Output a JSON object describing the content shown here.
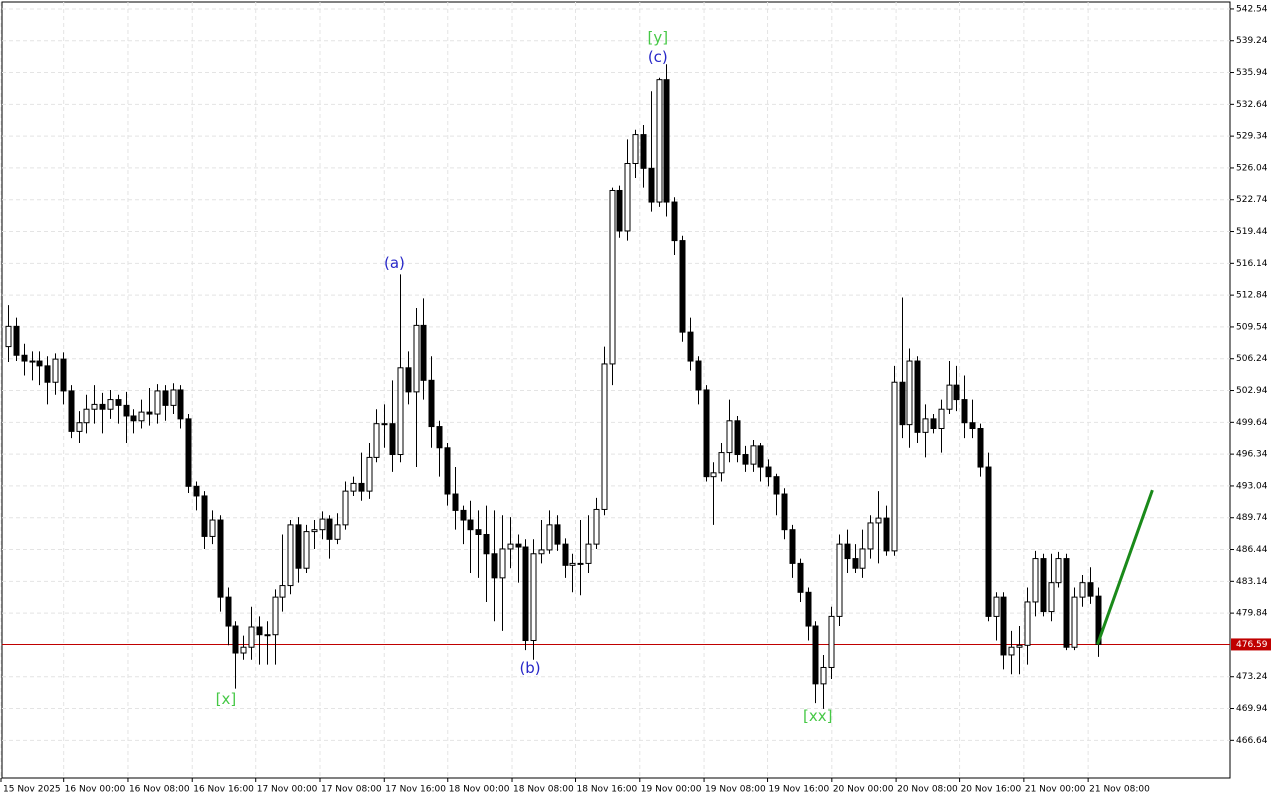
{
  "chart_data": {
    "type": "candlestick",
    "xlim": [
      -0.77,
      155.9
    ],
    "ylim": [
      462.73,
      543.26
    ],
    "grid": true,
    "up_color": "#ffffff",
    "down_color": "#000000",
    "xticks": [
      {
        "value": -0.9,
        "label": "15 Nov 2025"
      },
      {
        "value": 7.1,
        "label": "16 Nov 00:00"
      },
      {
        "value": 15.3,
        "label": "16 Nov 08:00"
      },
      {
        "value": 23.5,
        "label": "16 Nov 16:00"
      },
      {
        "value": 31.6,
        "label": "17 Nov 00:00"
      },
      {
        "value": 39.8,
        "label": "17 Nov 08:00"
      },
      {
        "value": 48.0,
        "label": "17 Nov 16:00"
      },
      {
        "value": 56.1,
        "label": "18 Nov 00:00"
      },
      {
        "value": 64.3,
        "label": "18 Nov 08:00"
      },
      {
        "value": 72.4,
        "label": "18 Nov 16:00"
      },
      {
        "value": 80.6,
        "label": "19 Nov 00:00"
      },
      {
        "value": 88.8,
        "label": "19 Nov 08:00"
      },
      {
        "value": 96.9,
        "label": "19 Nov 16:00"
      },
      {
        "value": 105.1,
        "label": "20 Nov 00:00"
      },
      {
        "value": 113.3,
        "label": "20 Nov 08:00"
      },
      {
        "value": 121.4,
        "label": "20 Nov 16:00"
      },
      {
        "value": 129.6,
        "label": "21 Nov 00:00"
      },
      {
        "value": 137.8,
        "label": "21 Nov 08:00"
      }
    ],
    "yticks": [
      542.54,
      539.24,
      535.94,
      532.64,
      529.34,
      526.04,
      522.74,
      519.44,
      516.14,
      512.84,
      509.54,
      506.24,
      502.94,
      499.64,
      496.34,
      493.04,
      489.74,
      486.44,
      483.14,
      479.84,
      473.24,
      469.94,
      466.64
    ],
    "open": [
      507.5,
      509.6,
      506.6,
      506.0,
      506.0,
      505.5,
      503.8,
      506.2,
      502.9,
      498.7,
      499.6,
      501.0,
      501.5,
      501.0,
      502.0,
      501.4,
      500.3,
      499.8,
      500.7,
      500.5,
      502.9,
      501.4,
      503.0,
      500.0,
      493.0,
      492.0,
      487.8,
      489.5,
      481.5,
      478.5,
      475.7,
      476.3,
      478.4,
      477.6,
      477.6,
      481.5,
      482.7,
      489.0,
      484.5,
      488.3,
      488.5,
      489.6,
      487.5,
      489.0,
      492.5,
      493.3,
      492.5,
      496.0,
      499.5,
      499.5,
      496.3,
      505.3,
      502.8,
      509.7,
      504.0,
      499.2,
      497.0,
      492.2,
      490.5,
      489.5,
      488.5,
      488.0,
      486.0,
      483.5,
      486.5,
      487.0,
      486.7,
      477.0,
      486.0,
      486.4,
      489.0,
      487.0,
      484.8,
      485.0,
      485.0,
      487.0,
      490.6,
      505.7,
      523.7,
      519.5,
      526.5,
      529.5,
      526.0,
      522.5,
      535.2,
      522.5,
      518.5,
      509.0,
      506.0,
      503.0,
      494.0,
      494.4,
      496.5,
      499.8,
      496.3,
      495.3,
      497.2,
      495.0,
      494.0,
      492.2,
      488.5,
      485.0,
      482.0,
      478.5,
      472.5,
      474.2,
      479.5,
      487.0,
      485.5,
      484.5,
      486.5,
      489.2,
      489.7,
      486.3,
      503.8,
      499.4,
      506.0,
      498.6,
      500.0,
      499.0,
      501.0,
      503.5,
      502.0,
      499.6,
      499.0,
      495.0,
      479.5,
      481.5,
      475.5,
      476.3,
      476.5,
      481.0,
      485.5,
      480.0,
      483.0,
      485.5,
      476.3,
      481.5,
      483.0,
      481.6
    ],
    "high": [
      511.8,
      510.5,
      507.8,
      507.0,
      507.0,
      506.5,
      506.8,
      506.9,
      503.5,
      500.8,
      502.5,
      503.5,
      502.7,
      503.0,
      502.5,
      502.8,
      501.0,
      502.0,
      503.2,
      503.6,
      503.5,
      503.7,
      503.5,
      500.5,
      493.5,
      492.5,
      490.5,
      490.0,
      482.5,
      479.0,
      477.5,
      480.5,
      479.5,
      479.0,
      482.3,
      488.0,
      489.5,
      489.8,
      489.0,
      489.5,
      490.4,
      490.0,
      490.2,
      493.5,
      494.0,
      496.5,
      497.5,
      501.0,
      501.5,
      504.0,
      515.0,
      507.0,
      511.5,
      512.5,
      506.5,
      499.8,
      497.5,
      495.0,
      491.0,
      491.5,
      490.5,
      491.0,
      490.5,
      490.0,
      489.8,
      488.0,
      487.5,
      487.5,
      489.5,
      490.5,
      490.0,
      487.6,
      486.0,
      489.5,
      490.0,
      491.8,
      507.5,
      524.0,
      524.2,
      529.0,
      530.0,
      530.5,
      534.0,
      535.4,
      536.8,
      523.0,
      519.0,
      510.5,
      506.5,
      503.5,
      495.5,
      497.5,
      502.0,
      500.3,
      497.2,
      497.8,
      497.5,
      495.8,
      494.3,
      492.8,
      489.0,
      485.5,
      482.5,
      479.0,
      475.5,
      480.5,
      488.0,
      488.5,
      487.0,
      488.5,
      490.0,
      492.5,
      491.0,
      505.5,
      512.6,
      507.3,
      506.5,
      501.5,
      500.5,
      502.0,
      506.0,
      505.5,
      504.5,
      502.0,
      499.5,
      496.5,
      482.0,
      482.0,
      478.0,
      478.5,
      482.5,
      486.3,
      486.0,
      486.0,
      486.2,
      486.0,
      482.5,
      483.8,
      484.6,
      482.5
    ],
    "low": [
      505.9,
      506.0,
      504.5,
      504.0,
      503.5,
      501.5,
      502.5,
      501.5,
      498.0,
      497.5,
      498.5,
      499.5,
      498.5,
      500.0,
      499.5,
      497.5,
      498.5,
      499.0,
      499.3,
      499.5,
      499.8,
      500.5,
      499.0,
      492.3,
      490.5,
      486.5,
      487.0,
      480.0,
      476.5,
      472.0,
      475.0,
      475.0,
      474.5,
      474.5,
      474.5,
      480.0,
      481.8,
      483.0,
      484.0,
      486.5,
      487.5,
      485.5,
      487.0,
      488.5,
      492.0,
      491.5,
      491.7,
      495.5,
      497.0,
      494.5,
      495.5,
      501.5,
      495.0,
      502.0,
      497.0,
      494.0,
      491.0,
      488.5,
      487.0,
      484.0,
      483.5,
      481.0,
      479.0,
      478.0,
      484.5,
      483.0,
      476.0,
      475.0,
      485.0,
      486.0,
      486.3,
      483.5,
      482.0,
      481.7,
      484.0,
      486.5,
      490.0,
      503.5,
      518.8,
      518.5,
      525.0,
      524.0,
      521.5,
      522.0,
      521.0,
      517.0,
      508.0,
      505.0,
      501.5,
      493.5,
      489.0,
      493.5,
      495.5,
      495.5,
      494.5,
      494.5,
      493.5,
      493.0,
      490.0,
      487.5,
      483.5,
      481.0,
      477.0,
      470.5,
      469.9,
      473.0,
      478.5,
      484.0,
      484.0,
      483.5,
      485.5,
      485.0,
      485.8,
      485.8,
      498.0,
      497.0,
      497.5,
      496.0,
      498.5,
      496.5,
      500.5,
      500.8,
      498.0,
      498.0,
      494.0,
      479.0,
      477.0,
      474.0,
      473.5,
      473.5,
      474.5,
      479.5,
      479.5,
      479.0,
      482.5,
      476.0,
      476.0,
      480.5,
      480.8,
      475.3
    ],
    "close": [
      509.6,
      506.6,
      506.0,
      506.0,
      505.5,
      503.8,
      506.2,
      502.9,
      498.7,
      499.6,
      501.0,
      501.5,
      501.0,
      502.0,
      501.4,
      500.3,
      499.8,
      500.7,
      500.5,
      502.9,
      501.4,
      503.0,
      500.0,
      493.0,
      492.0,
      487.8,
      489.5,
      481.5,
      478.5,
      475.7,
      476.3,
      478.4,
      477.6,
      477.6,
      481.5,
      482.7,
      489.0,
      484.5,
      488.3,
      488.5,
      489.6,
      487.5,
      489.0,
      492.5,
      493.3,
      492.5,
      496.0,
      499.5,
      499.5,
      496.3,
      505.3,
      502.8,
      509.7,
      504.0,
      499.2,
      497.0,
      492.2,
      490.5,
      489.5,
      488.5,
      488.0,
      486.0,
      483.5,
      486.5,
      487.0,
      486.7,
      477.0,
      486.0,
      486.4,
      489.0,
      487.0,
      484.8,
      485.0,
      485.0,
      487.0,
      490.6,
      505.7,
      523.7,
      519.5,
      526.5,
      529.5,
      526.0,
      522.5,
      535.2,
      522.5,
      518.5,
      509.0,
      506.0,
      503.0,
      494.0,
      494.4,
      496.5,
      499.8,
      496.3,
      495.3,
      497.2,
      495.0,
      494.0,
      492.2,
      488.5,
      485.0,
      482.0,
      478.5,
      472.5,
      474.2,
      479.5,
      487.0,
      485.5,
      484.5,
      486.5,
      489.2,
      489.7,
      486.3,
      503.8,
      499.4,
      506.0,
      498.6,
      500.0,
      499.0,
      501.0,
      503.5,
      502.0,
      499.6,
      499.0,
      495.0,
      479.5,
      481.5,
      475.5,
      476.3,
      476.5,
      481.0,
      485.5,
      480.0,
      483.0,
      485.5,
      476.3,
      481.5,
      483.0,
      481.6,
      476.6
    ],
    "last_price": 476.59,
    "last_price_color": "#c00000",
    "forecast": {
      "x": [
        139,
        146
      ],
      "values": [
        476.6,
        492.6
      ],
      "color": "#1a8a1a"
    },
    "annotations": [
      {
        "text": "(a)",
        "x": 49.3,
        "y": 516.1,
        "color": "#2828c8"
      },
      {
        "text": "(b)",
        "x": 66.6,
        "y": 474.1,
        "color": "#2828c8"
      },
      {
        "text": "(c)",
        "x": 82.9,
        "y": 537.5,
        "color": "#2828c8"
      },
      {
        "text": "[y]",
        "x": 82.9,
        "y": 539.5,
        "color": "#46c846"
      },
      {
        "text": "[x]",
        "x": 27.8,
        "y": 470.9,
        "color": "#46c846"
      },
      {
        "text": "[xx]",
        "x": 103.3,
        "y": 469.1,
        "color": "#46c846"
      }
    ]
  }
}
